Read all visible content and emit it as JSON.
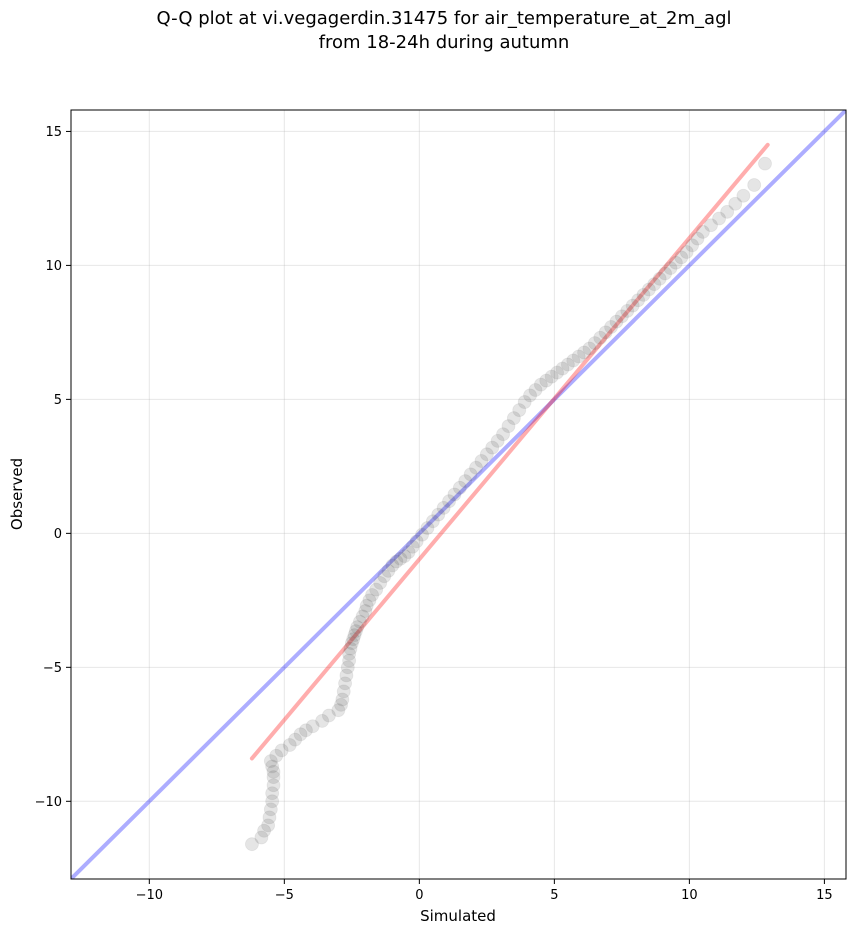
{
  "figure": {
    "title_line1": "Q-Q plot at vi.vegagerdin.31475 for air_temperature_at_2m_agl",
    "title_line2": "from 18-24h during autumn"
  },
  "chart_data": {
    "type": "scatter",
    "title": "Q-Q plot at vi.vegagerdin.31475 for air_temperature_at_2m_agl\nfrom 18-24h during autumn",
    "xlabel": "Simulated",
    "ylabel": "Observed",
    "xlim": [
      -12.9,
      15.8
    ],
    "ylim": [
      -12.9,
      15.8
    ],
    "xticks": [
      -10,
      -5,
      0,
      5,
      10,
      15
    ],
    "yticks": [
      -10,
      -5,
      0,
      5,
      10,
      15
    ],
    "xtick_labels": [
      "−10",
      "−5",
      "0",
      "5",
      "10",
      "15"
    ],
    "ytick_labels": [
      "−10",
      "−5",
      "0",
      "5",
      "10",
      "15"
    ],
    "grid": true,
    "points": {
      "color": "#000000",
      "x": [
        -6.2,
        -5.85,
        -5.75,
        -5.6,
        -5.55,
        -5.5,
        -5.45,
        -5.45,
        -5.4,
        -5.4,
        -5.4,
        -5.45,
        -5.5,
        -5.3,
        -5.1,
        -4.8,
        -4.6,
        -4.4,
        -4.2,
        -3.95,
        -3.6,
        -3.35,
        -3.0,
        -2.9,
        -2.85,
        -2.8,
        -2.75,
        -2.7,
        -2.65,
        -2.6,
        -2.6,
        -2.55,
        -2.5,
        -2.45,
        -2.4,
        -2.35,
        -2.3,
        -2.2,
        -2.1,
        -2.0,
        -1.95,
        -1.85,
        -1.75,
        -1.6,
        -1.45,
        -1.3,
        -1.15,
        -1.0,
        -0.85,
        -0.7,
        -0.55,
        -0.4,
        -0.25,
        -0.1,
        0.1,
        0.3,
        0.5,
        0.7,
        0.9,
        1.1,
        1.3,
        1.5,
        1.7,
        1.9,
        2.1,
        2.3,
        2.5,
        2.7,
        2.9,
        3.1,
        3.3,
        3.5,
        3.7,
        3.9,
        4.1,
        4.3,
        4.5,
        4.7,
        4.9,
        5.1,
        5.3,
        5.5,
        5.7,
        5.9,
        6.1,
        6.3,
        6.5,
        6.7,
        6.9,
        7.1,
        7.3,
        7.5,
        7.7,
        7.9,
        8.1,
        8.3,
        8.5,
        8.7,
        8.9,
        9.1,
        9.3,
        9.5,
        9.7,
        9.9,
        10.1,
        10.3,
        10.5,
        10.8,
        11.1,
        11.4,
        11.7,
        12.0,
        12.4,
        12.8
      ],
      "y": [
        -11.6,
        -11.35,
        -11.1,
        -10.9,
        -10.6,
        -10.3,
        -10.0,
        -9.7,
        -9.4,
        -9.1,
        -8.9,
        -8.7,
        -8.5,
        -8.3,
        -8.1,
        -7.9,
        -7.7,
        -7.5,
        -7.35,
        -7.2,
        -7.0,
        -6.8,
        -6.6,
        -6.4,
        -6.2,
        -5.9,
        -5.6,
        -5.3,
        -5.0,
        -4.75,
        -4.5,
        -4.3,
        -4.1,
        -3.95,
        -3.8,
        -3.65,
        -3.5,
        -3.3,
        -3.1,
        -2.9,
        -2.7,
        -2.5,
        -2.3,
        -2.1,
        -1.85,
        -1.6,
        -1.4,
        -1.2,
        -1.05,
        -0.95,
        -0.85,
        -0.7,
        -0.5,
        -0.3,
        -0.05,
        0.2,
        0.45,
        0.7,
        0.95,
        1.2,
        1.45,
        1.7,
        1.95,
        2.2,
        2.45,
        2.7,
        2.95,
        3.2,
        3.45,
        3.7,
        4.0,
        4.3,
        4.6,
        4.9,
        5.15,
        5.35,
        5.55,
        5.7,
        5.85,
        6.0,
        6.15,
        6.3,
        6.45,
        6.6,
        6.75,
        6.9,
        7.1,
        7.3,
        7.5,
        7.7,
        7.9,
        8.1,
        8.3,
        8.5,
        8.7,
        8.9,
        9.1,
        9.3,
        9.5,
        9.7,
        9.9,
        10.1,
        10.3,
        10.5,
        10.75,
        11.0,
        11.25,
        11.5,
        11.75,
        12.0,
        12.3,
        12.6,
        13.0,
        13.8
      ]
    },
    "lines": [
      {
        "color": "#0000ff",
        "x": [
          -12.9,
          15.8
        ],
        "y": [
          -12.9,
          15.8
        ]
      },
      {
        "color": "#ff0000",
        "x": [
          -6.2,
          12.9
        ],
        "y": [
          -8.4,
          14.5
        ]
      }
    ]
  }
}
